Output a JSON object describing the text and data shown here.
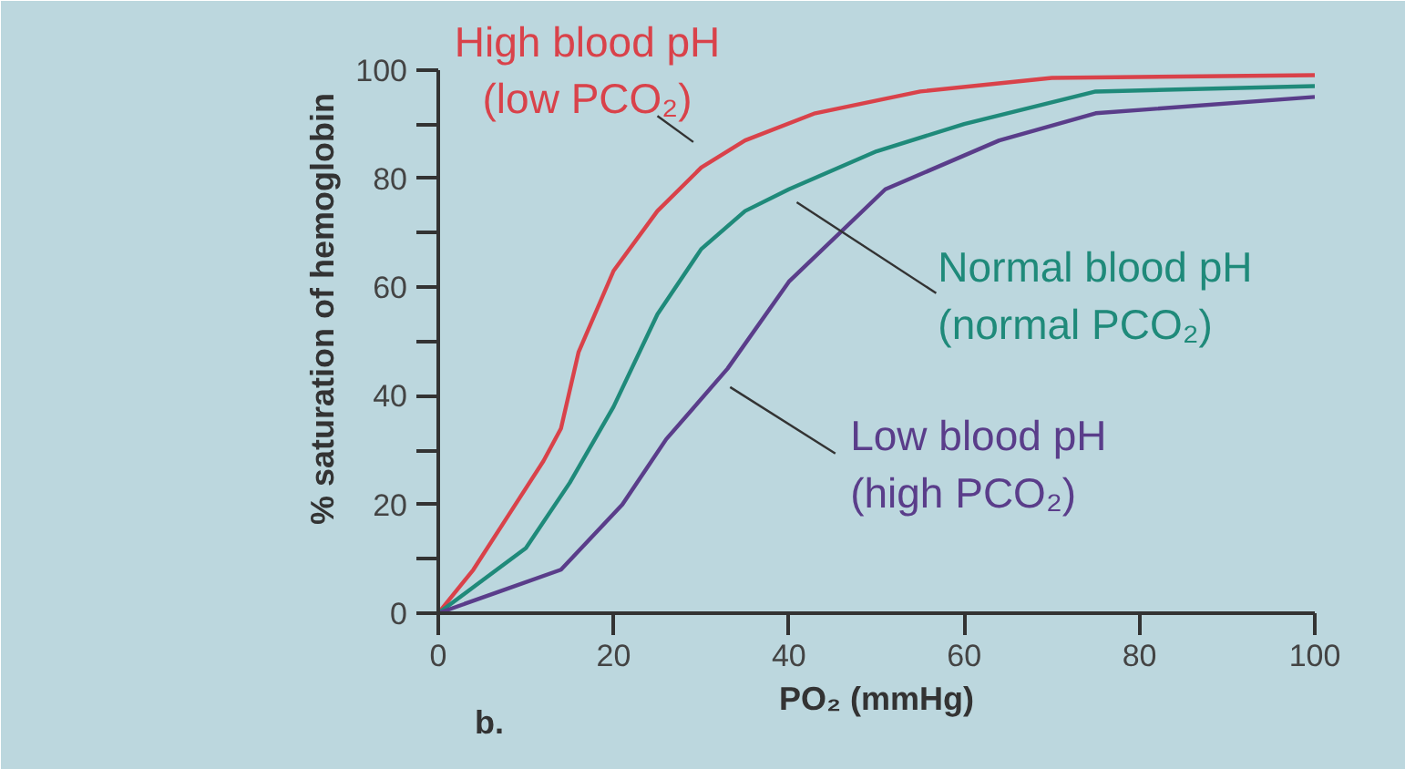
{
  "chart_data": {
    "type": "line",
    "xlabel": "PO₂ (mmHg)",
    "ylabel": "% saturation of hemoglobin",
    "xlim": [
      0,
      100
    ],
    "ylim": [
      0,
      100
    ],
    "xticks": [
      0,
      20,
      40,
      60,
      80,
      100
    ],
    "yticks": [
      0,
      {
        "value": 10,
        "label": null
      },
      20,
      {
        "value": 30,
        "label": null
      },
      40,
      {
        "value": 50,
        "label": null
      },
      60,
      {
        "value": 70,
        "label": null
      },
      80,
      {
        "value": 90,
        "label": null
      },
      100
    ],
    "grid": false,
    "legend": false,
    "marker": "none",
    "line_style": "solid",
    "annotations": [
      "b."
    ],
    "series": [
      {
        "name": "High blood pH\n(low PCO₂)",
        "color": "#d9424a",
        "x": [
          0,
          4,
          8,
          12,
          14,
          16,
          20,
          25,
          30,
          35,
          43,
          55,
          70,
          100
        ],
        "values": [
          0,
          8,
          18,
          28,
          34,
          48,
          63,
          74,
          82,
          87,
          92,
          96,
          98.5,
          99
        ]
      },
      {
        "name": "Normal blood pH\n(normal PCO₂)",
        "color": "#1f8a7a",
        "x": [
          0,
          5,
          10,
          15,
          20,
          25,
          30,
          35,
          40,
          50,
          60,
          75,
          100
        ],
        "values": [
          0,
          6,
          12,
          24,
          38,
          55,
          67,
          74,
          78,
          85,
          90,
          96,
          97
        ]
      },
      {
        "name": "Low blood pH\n(high PCO₂)",
        "color": "#5a3d8a",
        "x": [
          0,
          7,
          14,
          21,
          26,
          33,
          40,
          51,
          64,
          75,
          100
        ],
        "values": [
          0,
          4,
          8,
          20,
          32,
          45,
          61,
          78,
          87,
          92,
          95
        ]
      }
    ]
  }
}
